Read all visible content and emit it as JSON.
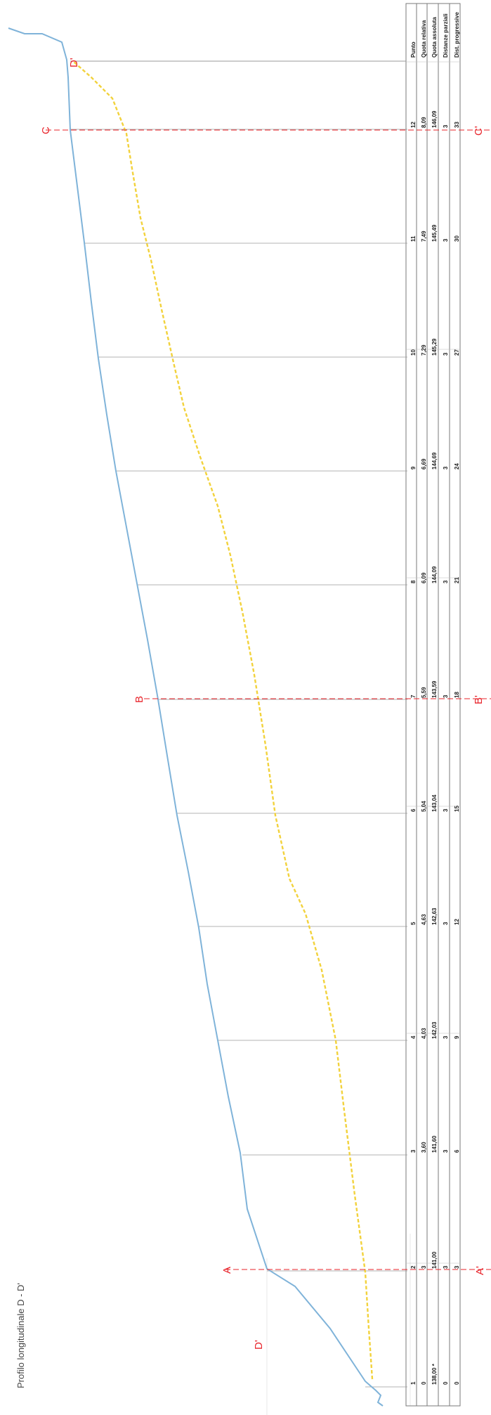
{
  "title": "Profilo longitudinale D - D'",
  "table": {
    "headers": [
      "Punto",
      "Quota relativa",
      "Quota assoluta",
      "Distanze parziali",
      "Dist. progressive"
    ],
    "rows": [
      {
        "punto": "1",
        "quota_relativa": "0",
        "quota_assoluta": "138,00 *",
        "dist_parziale": "0",
        "dist_progressiva": "0"
      },
      {
        "punto": "2",
        "quota_relativa": "3",
        "quota_assoluta": "141,00",
        "dist_parziale": "3",
        "dist_progressiva": "3"
      },
      {
        "punto": "3",
        "quota_relativa": "3,60",
        "quota_assoluta": "141,60",
        "dist_parziale": "3",
        "dist_progressiva": "6"
      },
      {
        "punto": "4",
        "quota_relativa": "4,03",
        "quota_assoluta": "142,03",
        "dist_parziale": "3",
        "dist_progressiva": "9"
      },
      {
        "punto": "5",
        "quota_relativa": "4,63",
        "quota_assoluta": "142,63",
        "dist_parziale": "3",
        "dist_progressiva": "12"
      },
      {
        "punto": "6",
        "quota_relativa": "5,04",
        "quota_assoluta": "143,04",
        "dist_parziale": "3",
        "dist_progressiva": "15"
      },
      {
        "punto": "7",
        "quota_relativa": "5,59",
        "quota_assoluta": "143,59",
        "dist_parziale": "3",
        "dist_progressiva": "18"
      },
      {
        "punto": "8",
        "quota_relativa": "6,09",
        "quota_assoluta": "144,09",
        "dist_parziale": "3",
        "dist_progressiva": "21"
      },
      {
        "punto": "9",
        "quota_relativa": "6,69",
        "quota_assoluta": "144,69",
        "dist_parziale": "3",
        "dist_progressiva": "24"
      },
      {
        "punto": "10",
        "quota_relativa": "7,29",
        "quota_assoluta": "145,29",
        "dist_parziale": "3",
        "dist_progressiva": "27"
      },
      {
        "punto": "11",
        "quota_relativa": "7,49",
        "quota_assoluta": "145,49",
        "dist_parziale": "3",
        "dist_progressiva": "30"
      },
      {
        "punto": "12",
        "quota_relativa": "8,09",
        "quota_assoluta": "146,09",
        "dist_parziale": "3",
        "dist_progressiva": "33"
      }
    ]
  },
  "sections": [
    {
      "top": "D'",
      "bottom": "D'"
    },
    {
      "top": "A",
      "bottom": "A'"
    },
    {
      "top": "B",
      "bottom": "B'"
    },
    {
      "top": "C",
      "bottom": "C'"
    }
  ],
  "colors": {
    "terrain": "#7fb3d9",
    "sublayer": "#f2d23c",
    "section": "#e8232a",
    "grid": "#7a7a7a",
    "text": "#222222"
  }
}
